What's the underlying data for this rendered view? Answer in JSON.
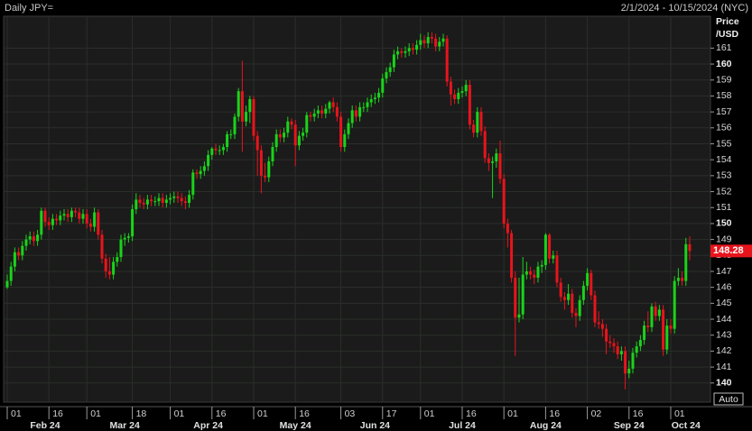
{
  "chart_data": {
    "type": "candlestick",
    "title": "Daily JPY=",
    "subtitle": "2/1/2024 - 10/15/2024 (NYC)",
    "y_label_lines": [
      "Price",
      "/USD"
    ],
    "last_price": 148.28,
    "button": "Auto",
    "up_color": "#19d419",
    "down_color": "#e8141c",
    "grid": true,
    "ylim": [
      138.8,
      163.0
    ],
    "yticks": [
      140,
      141,
      142,
      143,
      144,
      145,
      146,
      147,
      148,
      149,
      150,
      151,
      152,
      153,
      154,
      155,
      156,
      157,
      158,
      159,
      160,
      161
    ],
    "xlim": [
      -0.95,
      185.48
    ],
    "xticks": [
      {
        "value": 0,
        "label": "01"
      },
      {
        "value": 11,
        "label": "16"
      },
      {
        "value": 21,
        "label": "01"
      },
      {
        "value": 33,
        "label": "18"
      },
      {
        "value": 43,
        "label": "01"
      },
      {
        "value": 54,
        "label": "16"
      },
      {
        "value": 65,
        "label": "01"
      },
      {
        "value": 76,
        "label": "16"
      },
      {
        "value": 88,
        "label": "03"
      },
      {
        "value": 99,
        "label": "17"
      },
      {
        "value": 109,
        "label": "01"
      },
      {
        "value": 120,
        "label": "16"
      },
      {
        "value": 131,
        "label": "01"
      },
      {
        "value": 142,
        "label": "16"
      },
      {
        "value": 153,
        "label": "02"
      },
      {
        "value": 164,
        "label": "16"
      },
      {
        "value": 175,
        "label": "01"
      }
    ],
    "month_ticks": [
      {
        "value": 10,
        "label": "Feb 24"
      },
      {
        "value": 31,
        "label": "Mar 24"
      },
      {
        "value": 53,
        "label": "Apr 24"
      },
      {
        "value": 76,
        "label": "May 24"
      },
      {
        "value": 97,
        "label": "Jun 24"
      },
      {
        "value": 120,
        "label": "Jul 24"
      },
      {
        "value": 142,
        "label": "Aug 24"
      },
      {
        "value": 164,
        "label": "Sep 24"
      },
      {
        "value": 179,
        "label": "Oct 24"
      }
    ],
    "candles": [
      [
        146.0,
        146.8,
        145.9,
        146.4
      ],
      [
        146.4,
        147.6,
        146.1,
        147.3
      ],
      [
        147.3,
        148.5,
        147.0,
        148.2
      ],
      [
        148.2,
        148.5,
        147.7,
        148.0
      ],
      [
        148.0,
        148.9,
        147.7,
        148.6
      ],
      [
        148.6,
        149.3,
        148.3,
        149.0
      ],
      [
        149.0,
        149.5,
        148.7,
        149.2
      ],
      [
        149.2,
        149.5,
        148.6,
        148.9
      ],
      [
        148.9,
        149.6,
        148.6,
        149.3
      ],
      [
        149.3,
        151.0,
        149.0,
        150.8
      ],
      [
        150.8,
        151.0,
        149.8,
        150.1
      ],
      [
        150.1,
        150.4,
        149.6,
        149.9
      ],
      [
        149.9,
        150.6,
        149.6,
        150.3
      ],
      [
        150.3,
        150.6,
        149.9,
        150.2
      ],
      [
        150.2,
        150.8,
        149.9,
        150.5
      ],
      [
        150.5,
        150.9,
        150.2,
        150.6
      ],
      [
        150.6,
        150.9,
        150.1,
        150.4
      ],
      [
        150.4,
        151.0,
        150.1,
        150.8
      ],
      [
        150.8,
        151.0,
        150.4,
        150.7
      ],
      [
        150.7,
        151.0,
        150.0,
        150.3
      ],
      [
        150.3,
        150.9,
        150.0,
        150.6
      ],
      [
        150.6,
        150.9,
        149.7,
        150.0
      ],
      [
        150.0,
        150.3,
        149.5,
        149.8
      ],
      [
        149.8,
        151.0,
        149.5,
        150.7
      ],
      [
        150.7,
        150.9,
        149.0,
        149.3
      ],
      [
        149.3,
        149.6,
        147.5,
        147.8
      ],
      [
        147.8,
        148.1,
        146.6,
        147.0
      ],
      [
        147.0,
        147.9,
        146.5,
        146.8
      ],
      [
        146.8,
        147.9,
        146.5,
        147.6
      ],
      [
        147.6,
        148.2,
        147.3,
        147.9
      ],
      [
        147.9,
        149.3,
        147.6,
        149.0
      ],
      [
        149.0,
        149.4,
        148.6,
        149.1
      ],
      [
        149.1,
        149.4,
        148.8,
        149.2
      ],
      [
        149.2,
        151.2,
        148.9,
        150.9
      ],
      [
        150.9,
        151.9,
        150.6,
        151.5
      ],
      [
        151.5,
        151.8,
        151.0,
        151.3
      ],
      [
        151.3,
        151.6,
        150.9,
        151.2
      ],
      [
        151.2,
        151.8,
        150.9,
        151.5
      ],
      [
        151.5,
        151.8,
        151.1,
        151.4
      ],
      [
        151.4,
        151.7,
        151.1,
        151.4
      ],
      [
        151.4,
        151.9,
        151.1,
        151.6
      ],
      [
        151.6,
        151.9,
        151.0,
        151.3
      ],
      [
        151.3,
        151.8,
        151.0,
        151.5
      ],
      [
        151.5,
        151.9,
        151.2,
        151.6
      ],
      [
        151.6,
        152.0,
        151.3,
        151.7
      ],
      [
        151.7,
        152.0,
        151.3,
        151.6
      ],
      [
        151.6,
        151.9,
        151.1,
        151.4
      ],
      [
        151.4,
        151.7,
        150.9,
        151.3
      ],
      [
        151.3,
        152.1,
        151.0,
        151.8
      ],
      [
        151.8,
        153.4,
        151.5,
        153.2
      ],
      [
        153.2,
        153.4,
        152.8,
        153.1
      ],
      [
        153.1,
        153.6,
        152.8,
        153.3
      ],
      [
        153.3,
        153.9,
        153.0,
        153.6
      ],
      [
        153.6,
        154.6,
        153.3,
        154.3
      ],
      [
        154.3,
        154.8,
        154.0,
        154.7
      ],
      [
        154.7,
        155.0,
        154.3,
        154.6
      ],
      [
        154.6,
        154.9,
        154.3,
        154.6
      ],
      [
        154.6,
        155.0,
        154.3,
        154.8
      ],
      [
        154.8,
        155.8,
        154.5,
        155.6
      ],
      [
        155.6,
        155.9,
        155.3,
        155.6
      ],
      [
        155.6,
        156.9,
        155.3,
        156.7
      ],
      [
        156.7,
        158.5,
        156.4,
        158.3
      ],
      [
        158.3,
        160.2,
        154.5,
        156.4
      ],
      [
        156.4,
        157.4,
        156.1,
        157.0
      ],
      [
        157.0,
        158.0,
        156.3,
        157.8
      ],
      [
        157.8,
        158.0,
        155.2,
        155.5
      ],
      [
        155.5,
        155.8,
        153.0,
        154.6
      ],
      [
        154.6,
        154.9,
        151.9,
        153.0
      ],
      [
        153.0,
        153.8,
        152.6,
        152.9
      ],
      [
        152.9,
        154.2,
        152.6,
        153.9
      ],
      [
        153.9,
        155.1,
        153.6,
        154.8
      ],
      [
        154.8,
        155.9,
        154.5,
        155.6
      ],
      [
        155.6,
        155.9,
        155.1,
        155.4
      ],
      [
        155.4,
        156.0,
        155.1,
        155.7
      ],
      [
        155.7,
        156.7,
        155.4,
        156.4
      ],
      [
        156.4,
        156.6,
        155.9,
        156.2
      ],
      [
        156.2,
        156.5,
        153.6,
        154.9
      ],
      [
        154.9,
        155.8,
        154.6,
        155.5
      ],
      [
        155.5,
        156.0,
        155.2,
        155.7
      ],
      [
        155.7,
        157.0,
        155.4,
        156.8
      ],
      [
        156.8,
        157.0,
        156.4,
        156.7
      ],
      [
        156.7,
        157.2,
        156.4,
        156.9
      ],
      [
        156.9,
        157.4,
        156.6,
        157.1
      ],
      [
        157.1,
        157.4,
        156.6,
        156.9
      ],
      [
        156.9,
        157.5,
        156.6,
        157.2
      ],
      [
        157.2,
        157.7,
        156.9,
        157.6
      ],
      [
        157.6,
        157.9,
        157.0,
        157.3
      ],
      [
        157.3,
        157.6,
        156.4,
        156.7
      ],
      [
        156.7,
        157.0,
        154.5,
        154.8
      ],
      [
        154.8,
        155.9,
        154.5,
        155.6
      ],
      [
        155.6,
        156.6,
        155.3,
        156.3
      ],
      [
        156.3,
        157.4,
        156.0,
        157.1
      ],
      [
        157.1,
        157.4,
        156.4,
        156.7
      ],
      [
        156.7,
        157.6,
        156.4,
        157.3
      ],
      [
        157.3,
        157.6,
        157.0,
        157.3
      ],
      [
        157.3,
        157.9,
        157.0,
        157.6
      ],
      [
        157.6,
        158.1,
        157.3,
        157.8
      ],
      [
        157.8,
        158.2,
        157.5,
        157.9
      ],
      [
        157.9,
        158.5,
        157.6,
        158.2
      ],
      [
        158.2,
        159.4,
        157.9,
        159.1
      ],
      [
        159.1,
        159.8,
        158.8,
        159.5
      ],
      [
        159.5,
        160.1,
        159.2,
        159.8
      ],
      [
        159.8,
        160.9,
        159.5,
        160.6
      ],
      [
        160.6,
        161.1,
        160.3,
        160.8
      ],
      [
        160.8,
        161.0,
        160.4,
        160.7
      ],
      [
        160.7,
        161.1,
        160.4,
        160.8
      ],
      [
        160.8,
        161.3,
        160.5,
        161.0
      ],
      [
        161.0,
        161.3,
        160.6,
        160.9
      ],
      [
        160.9,
        161.5,
        160.6,
        161.2
      ],
      [
        161.2,
        161.9,
        160.9,
        161.5
      ],
      [
        161.5,
        161.8,
        161.0,
        161.3
      ],
      [
        161.3,
        162.0,
        161.0,
        161.7
      ],
      [
        161.7,
        162.0,
        161.3,
        161.6
      ],
      [
        161.6,
        161.9,
        160.8,
        161.1
      ],
      [
        161.1,
        161.7,
        160.8,
        161.4
      ],
      [
        161.4,
        161.9,
        161.1,
        161.6
      ],
      [
        161.6,
        161.8,
        158.6,
        158.9
      ],
      [
        158.9,
        159.2,
        157.4,
        158.1
      ],
      [
        158.1,
        158.4,
        157.5,
        157.8
      ],
      [
        157.8,
        158.5,
        157.5,
        158.2
      ],
      [
        158.2,
        158.6,
        157.9,
        158.3
      ],
      [
        158.3,
        159.0,
        158.0,
        158.7
      ],
      [
        158.7,
        159.0,
        155.9,
        156.2
      ],
      [
        156.2,
        156.5,
        155.4,
        155.7
      ],
      [
        155.7,
        157.3,
        155.4,
        157.0
      ],
      [
        157.0,
        157.3,
        155.5,
        155.8
      ],
      [
        155.8,
        156.1,
        153.8,
        154.1
      ],
      [
        154.1,
        154.4,
        153.3,
        153.8
      ],
      [
        153.8,
        154.2,
        151.6,
        153.9
      ],
      [
        153.9,
        154.7,
        153.5,
        154.4
      ],
      [
        154.4,
        155.2,
        152.5,
        152.8
      ],
      [
        152.8,
        153.1,
        149.7,
        150.0
      ],
      [
        150.0,
        150.3,
        148.5,
        149.4
      ],
      [
        149.4,
        149.6,
        146.3,
        146.6
      ],
      [
        146.6,
        147.0,
        141.7,
        144.1
      ],
      [
        144.1,
        146.6,
        143.8,
        144.3
      ],
      [
        144.3,
        147.9,
        144.0,
        146.8
      ],
      [
        146.8,
        147.6,
        146.5,
        147.0
      ],
      [
        147.0,
        147.3,
        146.5,
        146.8
      ],
      [
        146.8,
        147.1,
        146.2,
        146.6
      ],
      [
        146.6,
        147.6,
        146.3,
        147.3
      ],
      [
        147.3,
        147.7,
        146.9,
        147.4
      ],
      [
        147.4,
        149.4,
        147.1,
        149.3
      ],
      [
        149.3,
        149.4,
        147.5,
        147.8
      ],
      [
        147.8,
        148.3,
        147.5,
        148.0
      ],
      [
        148.0,
        148.3,
        146.0,
        146.3
      ],
      [
        146.3,
        146.6,
        145.1,
        145.4
      ],
      [
        145.4,
        145.7,
        144.6,
        145.2
      ],
      [
        145.2,
        146.2,
        144.9,
        145.6
      ],
      [
        145.6,
        145.9,
        144.1,
        144.4
      ],
      [
        144.4,
        144.7,
        143.5,
        144.2
      ],
      [
        144.2,
        145.5,
        143.9,
        145.2
      ],
      [
        145.2,
        146.4,
        144.9,
        146.1
      ],
      [
        146.1,
        147.2,
        145.8,
        146.9
      ],
      [
        146.9,
        147.1,
        145.2,
        145.5
      ],
      [
        145.5,
        145.8,
        143.5,
        143.8
      ],
      [
        143.8,
        144.5,
        143.4,
        143.7
      ],
      [
        143.7,
        144.0,
        142.9,
        143.4
      ],
      [
        143.4,
        143.7,
        141.8,
        142.6
      ],
      [
        142.6,
        143.0,
        142.2,
        142.5
      ],
      [
        142.5,
        142.8,
        141.9,
        142.3
      ],
      [
        142.3,
        142.6,
        141.5,
        141.8
      ],
      [
        141.8,
        142.3,
        141.4,
        142.0
      ],
      [
        142.0,
        142.3,
        139.6,
        140.6
      ],
      [
        140.6,
        141.4,
        140.3,
        140.9
      ],
      [
        140.9,
        142.2,
        140.6,
        141.9
      ],
      [
        141.9,
        142.6,
        141.6,
        142.3
      ],
      [
        142.3,
        143.0,
        142.0,
        142.7
      ],
      [
        142.7,
        143.9,
        142.4,
        143.6
      ],
      [
        143.6,
        144.5,
        143.2,
        143.5
      ],
      [
        143.5,
        145.0,
        143.2,
        144.8
      ],
      [
        144.8,
        145.1,
        143.9,
        144.2
      ],
      [
        144.2,
        144.9,
        143.9,
        144.6
      ],
      [
        144.6,
        144.9,
        141.7,
        142.1
      ],
      [
        142.1,
        144.0,
        141.8,
        143.6
      ],
      [
        143.6,
        144.0,
        143.1,
        143.4
      ],
      [
        143.4,
        146.7,
        143.1,
        146.4
      ],
      [
        146.4,
        147.2,
        146.1,
        146.6
      ],
      [
        146.6,
        147.0,
        146.1,
        146.4
      ],
      [
        146.4,
        149.1,
        146.1,
        148.7
      ],
      [
        148.7,
        149.2,
        147.7,
        148.28
      ]
    ]
  }
}
